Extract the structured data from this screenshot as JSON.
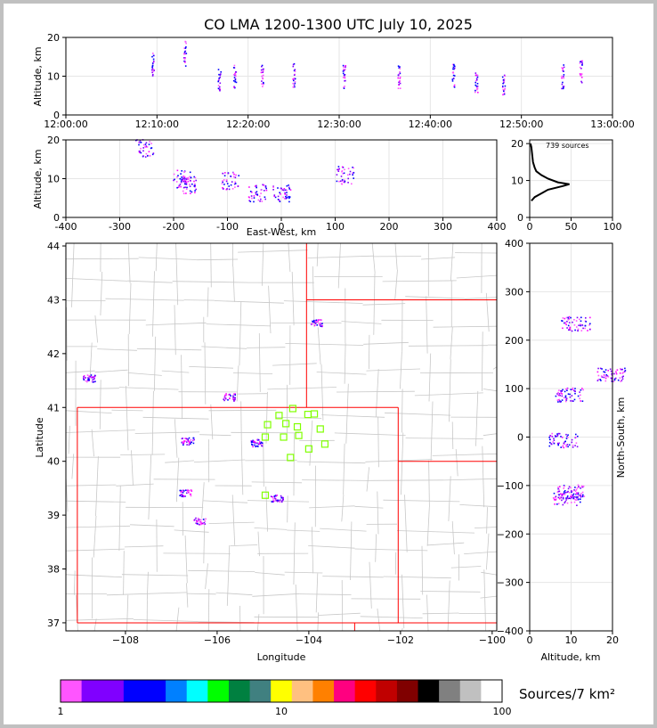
{
  "chart_data": [
    {
      "id": "time_altitude",
      "type": "scatter",
      "title": "CO LMA 1200-1300 UTC July 10, 2025",
      "xlabel": "",
      "ylabel": "Altitude, km",
      "x_ticks": [
        "12:00:00",
        "12:10:00",
        "12:20:00",
        "12:30:00",
        "12:40:00",
        "12:50:00",
        "13:00:00"
      ],
      "y_ticks": [
        0,
        10,
        20
      ],
      "xlim_minutes": [
        0,
        60
      ],
      "ylim": [
        0,
        20
      ],
      "source_clusters": [
        {
          "t": 9.5,
          "alt": 13.0
        },
        {
          "t": 13.0,
          "alt": 16.0
        },
        {
          "t": 16.8,
          "alt": 9.5
        },
        {
          "t": 18.5,
          "alt": 10.0
        },
        {
          "t": 21.5,
          "alt": 10.0
        },
        {
          "t": 25.0,
          "alt": 10.5
        },
        {
          "t": 30.5,
          "alt": 10.0
        },
        {
          "t": 36.5,
          "alt": 10.0
        },
        {
          "t": 42.5,
          "alt": 10.0
        },
        {
          "t": 45.0,
          "alt": 9.0
        },
        {
          "t": 48.0,
          "alt": 8.5
        },
        {
          "t": 54.5,
          "alt": 10.0
        },
        {
          "t": 56.5,
          "alt": 11.0
        }
      ]
    },
    {
      "id": "ew_altitude",
      "type": "scatter",
      "xlabel": "East-West, km",
      "ylabel": "Altitude, km",
      "x_ticks": [
        -400,
        -300,
        -200,
        -100,
        0,
        100,
        200,
        300,
        400
      ],
      "y_ticks": [
        0,
        10,
        20
      ],
      "xlim": [
        -400,
        400
      ],
      "ylim": [
        0,
        20
      ],
      "source_clusters": [
        {
          "x": -255,
          "alt": 18.0
        },
        {
          "x": -185,
          "alt": 10.0
        },
        {
          "x": -175,
          "alt": 8.5
        },
        {
          "x": -95,
          "alt": 9.5
        },
        {
          "x": -45,
          "alt": 6.5
        },
        {
          "x": 0,
          "alt": 6.5
        },
        {
          "x": 118,
          "alt": 11.0
        }
      ]
    },
    {
      "id": "altitude_histogram",
      "type": "line",
      "annotation": "739 sources",
      "x_ticks": [
        0,
        50,
        100
      ],
      "y_ticks": [
        0,
        10,
        20
      ],
      "xlim": [
        0,
        100
      ],
      "ylim": [
        0,
        21
      ],
      "profile": [
        {
          "alt": 4.5,
          "count": 2
        },
        {
          "alt": 5.5,
          "count": 6
        },
        {
          "alt": 6.5,
          "count": 14
        },
        {
          "alt": 7.5,
          "count": 22
        },
        {
          "alt": 8.5,
          "count": 40
        },
        {
          "alt": 9.0,
          "count": 48
        },
        {
          "alt": 9.5,
          "count": 34
        },
        {
          "alt": 10.5,
          "count": 22
        },
        {
          "alt": 11.5,
          "count": 14
        },
        {
          "alt": 12.5,
          "count": 8
        },
        {
          "alt": 13.5,
          "count": 6
        },
        {
          "alt": 15.0,
          "count": 4
        },
        {
          "alt": 17.0,
          "count": 3
        },
        {
          "alt": 19.0,
          "count": 2
        },
        {
          "alt": 20.0,
          "count": 1
        }
      ]
    },
    {
      "id": "plan_view",
      "type": "scatter",
      "xlabel": "Longitude",
      "ylabel": "Latitude",
      "x_ticks": [
        -108,
        -106,
        -104,
        -102,
        -100
      ],
      "y_ticks": [
        37,
        38,
        39,
        40,
        41,
        42,
        43,
        44
      ],
      "xlim": [
        -109.3,
        -99.9
      ],
      "ylim": [
        36.85,
        44.05
      ],
      "source_clusters": [
        {
          "lon": -103.85,
          "lat": 42.58
        },
        {
          "lon": -108.8,
          "lat": 41.55
        },
        {
          "lon": -105.75,
          "lat": 41.2
        },
        {
          "lon": -106.65,
          "lat": 40.38
        },
        {
          "lon": -105.15,
          "lat": 40.35
        },
        {
          "lon": -106.7,
          "lat": 39.42
        },
        {
          "lon": -104.7,
          "lat": 39.32
        },
        {
          "lon": -106.4,
          "lat": 38.9
        }
      ],
      "stations": [
        {
          "lon": -104.35,
          "lat": 40.98
        },
        {
          "lon": -104.65,
          "lat": 40.85
        },
        {
          "lon": -104.02,
          "lat": 40.87
        },
        {
          "lon": -103.88,
          "lat": 40.88
        },
        {
          "lon": -104.9,
          "lat": 40.68
        },
        {
          "lon": -104.5,
          "lat": 40.7
        },
        {
          "lon": -104.25,
          "lat": 40.64
        },
        {
          "lon": -103.75,
          "lat": 40.6
        },
        {
          "lon": -104.95,
          "lat": 40.45
        },
        {
          "lon": -104.55,
          "lat": 40.45
        },
        {
          "lon": -104.22,
          "lat": 40.48
        },
        {
          "lon": -103.65,
          "lat": 40.32
        },
        {
          "lon": -104.0,
          "lat": 40.23
        },
        {
          "lon": -104.4,
          "lat": 40.07
        },
        {
          "lon": -104.95,
          "lat": 39.37
        }
      ]
    },
    {
      "id": "ns_altitude",
      "type": "scatter",
      "xlabel": "Altitude, km",
      "ylabel": "North-South, km",
      "x_ticks": [
        0,
        10,
        20
      ],
      "y_ticks": [
        -400,
        -300,
        -200,
        -100,
        0,
        100,
        200,
        300,
        400
      ],
      "xlim": [
        0,
        20
      ],
      "ylim": [
        -400,
        400
      ],
      "source_clusters": [
        {
          "alt": 11.0,
          "y": 235
        },
        {
          "alt": 19.5,
          "y": 130
        },
        {
          "alt": 9.5,
          "y": 88
        },
        {
          "alt": 8.0,
          "y": -6
        },
        {
          "alt": 10.0,
          "y": -112
        },
        {
          "alt": 9.0,
          "y": -125
        }
      ]
    }
  ],
  "colorbar": {
    "label": "Sources/7 km²",
    "tick_labels": [
      "1",
      "10",
      "100"
    ],
    "colors": [
      "#ff55ff",
      "#8000ff",
      "#8000ff",
      "#0000ff",
      "#0000ff",
      "#0080ff",
      "#00ffff",
      "#00ff00",
      "#008040",
      "#408080",
      "#ffff00",
      "#ffc080",
      "#ff8000",
      "#ff0080",
      "#ff0000",
      "#c00000",
      "#800000",
      "#000000",
      "#808080",
      "#c0c0c0",
      "#ffffff"
    ]
  },
  "colors": {
    "state_border": "#ff0000",
    "county_line": "#c8c8c8",
    "station": "#80ff00",
    "grid": "#e6e6e6"
  }
}
